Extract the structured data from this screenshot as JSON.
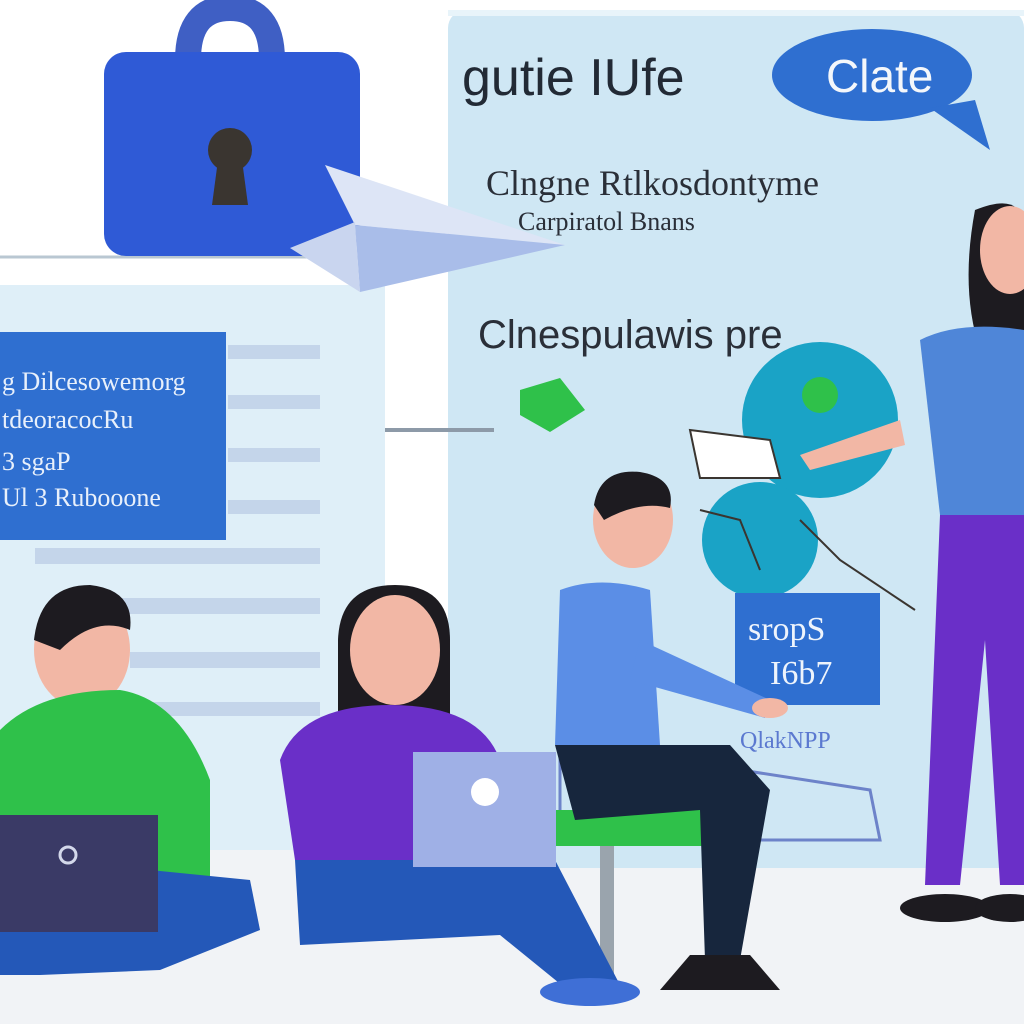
{
  "board": {
    "heading": "gutie IUfe",
    "bubble_label": "Clate",
    "subtitle_line1": "Clngne Rtlkosdontyme",
    "subtitle_line2": "Carpiratol Bnans",
    "section_title": "Clnespulawis pre"
  },
  "left_panel": {
    "line1": "g Dilcesowemorg",
    "line2": "tdeoracocRu",
    "line3": "3 sgaP",
    "line4": "Ul 3 Rubooone"
  },
  "stats_card": {
    "line1": "sropS",
    "line2": "I6b7"
  },
  "caption": "QlakNPP",
  "colors": {
    "lock_body": "#2f5ad6",
    "lock_shackle": "#3f5fc4",
    "board_bg": "#cfe7f4",
    "wall_panel": "#dfeff8",
    "accent_blue": "#2f6fd0",
    "green_shirt": "#2fc14a",
    "purple_shirt": "#6a2fc8",
    "blue_shirt": "#5b8ee6",
    "globe": "#1aa3c6"
  },
  "icons": {
    "lock": "padlock-icon",
    "plane": "paper-plane-icon",
    "bubble": "speech-bubble-icon",
    "globe": "world-map-icon"
  }
}
